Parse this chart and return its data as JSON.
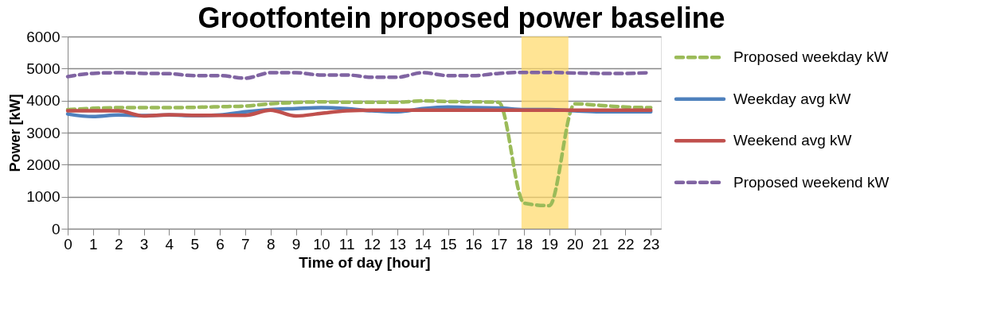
{
  "chart_data": {
    "type": "line",
    "title": "Grootfontein proposed power baseline",
    "xlabel": "Time of day [hour]",
    "ylabel": "Power [kW]",
    "x": [
      0,
      1,
      2,
      3,
      4,
      5,
      6,
      7,
      8,
      9,
      10,
      11,
      12,
      13,
      14,
      15,
      16,
      17,
      18,
      19,
      20,
      21,
      22,
      23
    ],
    "series": [
      {
        "name": "Proposed weekday kW",
        "color": "#9bbb59",
        "line_style": "dashed",
        "values": [
          3720,
          3760,
          3780,
          3780,
          3780,
          3790,
          3810,
          3830,
          3900,
          3940,
          3960,
          3950,
          3950,
          3950,
          3990,
          3970,
          3960,
          3950,
          800,
          720,
          3900,
          3850,
          3800,
          3780
        ]
      },
      {
        "name": "Weekday avg kW",
        "color": "#4f81bd",
        "line_style": "solid",
        "values": [
          3580,
          3500,
          3550,
          3530,
          3550,
          3530,
          3550,
          3650,
          3720,
          3750,
          3780,
          3750,
          3680,
          3650,
          3750,
          3800,
          3780,
          3770,
          3720,
          3720,
          3680,
          3650,
          3650,
          3650
        ]
      },
      {
        "name": "Weekend avg kW",
        "color": "#c0504d",
        "line_style": "solid",
        "values": [
          3680,
          3680,
          3680,
          3520,
          3560,
          3540,
          3540,
          3540,
          3700,
          3520,
          3600,
          3680,
          3700,
          3700,
          3700,
          3700,
          3700,
          3700,
          3700,
          3700,
          3700,
          3700,
          3700,
          3700
        ]
      },
      {
        "name": "Proposed weekend kW",
        "color": "#8064a2",
        "line_style": "dashed",
        "values": [
          4750,
          4850,
          4870,
          4850,
          4840,
          4780,
          4780,
          4700,
          4870,
          4870,
          4800,
          4800,
          4730,
          4730,
          4870,
          4780,
          4780,
          4850,
          4880,
          4880,
          4860,
          4850,
          4850,
          4870
        ]
      }
    ],
    "xlim": [
      0,
      23.4
    ],
    "xticks": [
      0,
      1,
      2,
      3,
      4,
      5,
      6,
      7,
      8,
      9,
      10,
      11,
      12,
      13,
      14,
      15,
      16,
      17,
      18,
      19,
      20,
      21,
      22,
      23
    ],
    "ylim": [
      0,
      6000
    ],
    "yticks": [
      0,
      1000,
      2000,
      3000,
      4000,
      5000,
      6000
    ],
    "bands": [
      {
        "axis": "x",
        "from": 17.9,
        "to": 19.75,
        "color": "#ffd966"
      }
    ],
    "grid": "y",
    "legend": "right",
    "marker": "none"
  }
}
